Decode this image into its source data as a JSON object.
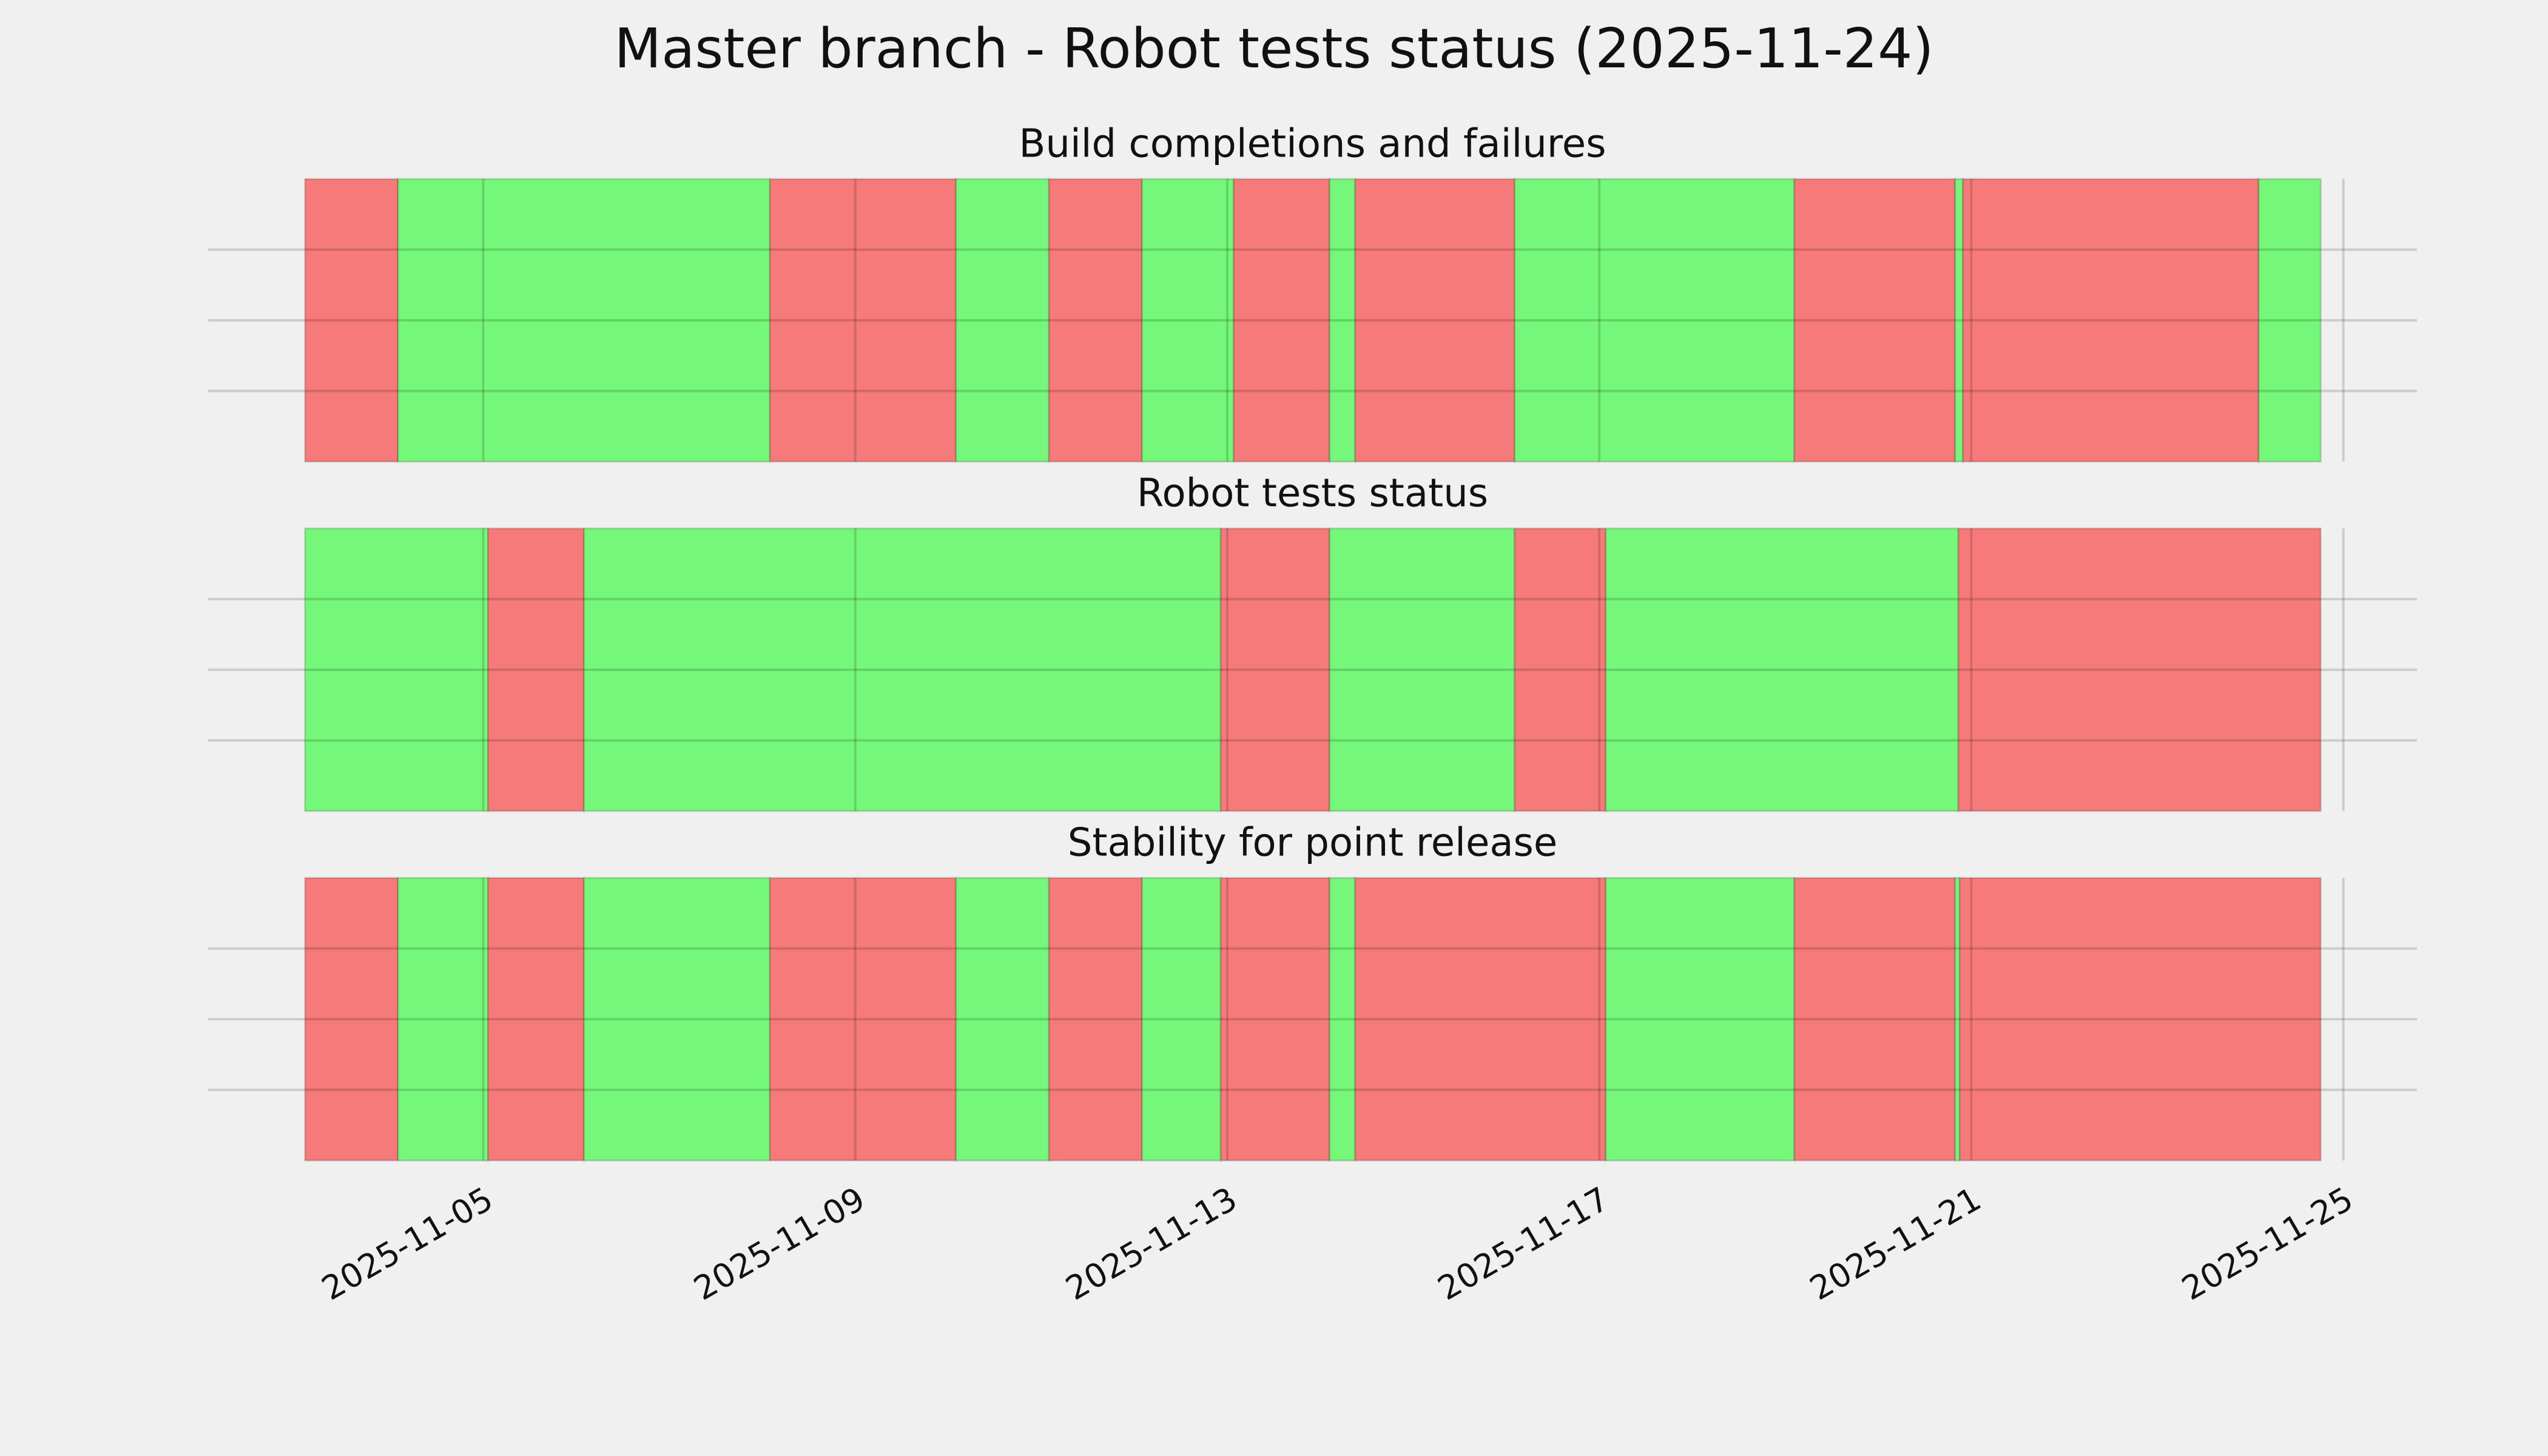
{
  "chart_data": {
    "type": "timeline",
    "title": "Master branch - Robot tests status (2025-11-24)",
    "xlim": [
      "2025-11-02T01:00",
      "2025-11-25T19:00"
    ],
    "xticks": [
      "2025-11-05",
      "2025-11-09",
      "2025-11-13",
      "2025-11-17",
      "2025-11-21",
      "2025-11-25"
    ],
    "ylim": [
      0,
      1
    ],
    "yticks": [
      0.25,
      0.5,
      0.75
    ],
    "grid": true,
    "panels": [
      {
        "title": "Build completions and failures",
        "x": [
          "2025-11-03T02:00",
          "2025-11-04T02:00",
          "2025-11-08T02:00",
          "2025-11-10T02:00",
          "2025-11-11T02:00",
          "2025-11-12T02:00",
          "2025-11-13T01:40",
          "2025-11-14T02:25",
          "2025-11-14T09:00",
          "2025-11-16T02:10",
          "2025-11-19T02:20",
          "2025-11-20T19:50",
          "2025-11-20T21:50",
          "2025-11-24T02:10",
          "2025-11-24T18:10"
        ],
        "colors": [
          "#f77a7a",
          "#75f77a",
          "#f77a7a",
          "#75f77a",
          "#f77a7a",
          "#75f77a",
          "#f77a7a",
          "#75f77a",
          "#f77a7a",
          "#75f77a",
          "#f77a7a",
          "#75f77a",
          "#f77a7a",
          "#75f77a"
        ]
      },
      {
        "title": "Robot tests status",
        "x": [
          "2025-11-03T02:00",
          "2025-11-05T01:15",
          "2025-11-06T02:00",
          "2025-11-12T22:20",
          "2025-11-14T02:25",
          "2025-11-16T02:10",
          "2025-11-17T01:40",
          "2025-11-20T20:40",
          "2025-11-24T18:10"
        ],
        "colors": [
          "#75f77a",
          "#f77a7a",
          "#75f77a",
          "#f77a7a",
          "#75f77a",
          "#f77a7a",
          "#75f77a",
          "#f77a7a"
        ]
      },
      {
        "title": "Stability for point release",
        "x": [
          "2025-11-03T02:00",
          "2025-11-04T02:00",
          "2025-11-05T01:15",
          "2025-11-06T02:00",
          "2025-11-08T02:00",
          "2025-11-10T02:00",
          "2025-11-11T02:00",
          "2025-11-12T02:00",
          "2025-11-12T22:20",
          "2025-11-14T02:25",
          "2025-11-14T09:00",
          "2025-11-17T01:40",
          "2025-11-19T02:20",
          "2025-11-20T19:50",
          "2025-11-20T21:00",
          "2025-11-24T18:10"
        ],
        "colors": [
          "#f77a7a",
          "#75f77a",
          "#f77a7a",
          "#75f77a",
          "#f77a7a",
          "#75f77a",
          "#f77a7a",
          "#75f77a",
          "#f77a7a",
          "#75f77a",
          "#f77a7a",
          "#75f77a",
          "#f77a7a",
          "#75f77a",
          "#f77a7a"
        ]
      }
    ]
  }
}
